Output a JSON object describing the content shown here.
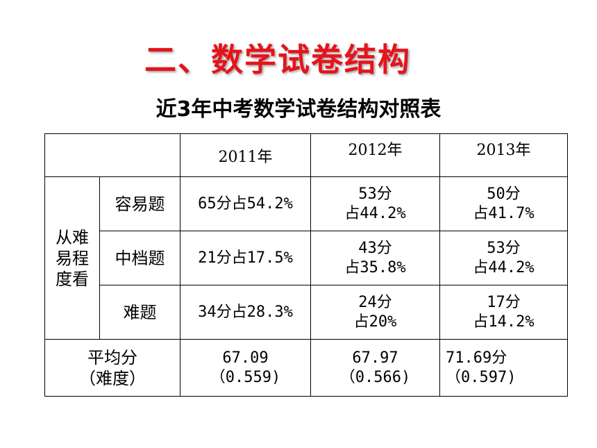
{
  "title": "二、数学试卷结构",
  "subtitle": "近3年中考数学试卷结构对照表",
  "table": {
    "years": [
      "2011年",
      "2012年",
      "2013年"
    ],
    "group_label": [
      "从难",
      "易程",
      "度看"
    ],
    "rows": [
      {
        "label": "容易题",
        "c2011": "65分占54.2%",
        "c2012": [
          "53分",
          "占44.2%"
        ],
        "c2013": [
          "50分",
          "占41.7%"
        ]
      },
      {
        "label": "中档题",
        "c2011": "21分占17.5%",
        "c2012": [
          "43分",
          "占35.8%"
        ],
        "c2013": [
          "53分",
          "占44.2%"
        ]
      },
      {
        "label": "难题",
        "c2011": "34分占28.3%",
        "c2012": [
          "24分",
          "占20%"
        ],
        "c2013": [
          "17分",
          "占14.2%"
        ]
      }
    ],
    "avg": {
      "label": [
        "平均分",
        "（难度）"
      ],
      "c2011": [
        "67.09",
        "（0.559)"
      ],
      "c2012": [
        "67.97",
        "（0.566)"
      ],
      "c2013": [
        "71.69分",
        "（0.597)"
      ]
    }
  }
}
